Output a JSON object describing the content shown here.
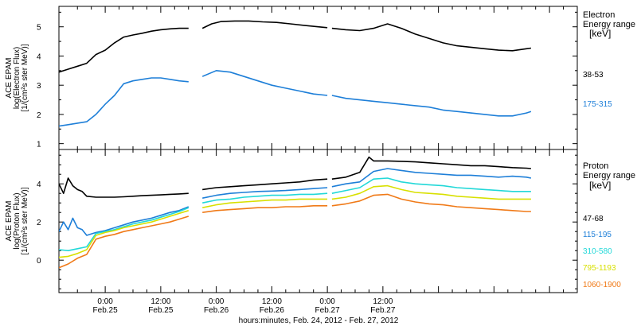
{
  "chart_data": [
    {
      "type": "line",
      "panel": "electron",
      "ylabel_lines": [
        "ACE EPAM",
        "log(Electron Flux)",
        "[1/(cm²s ster MeV)]"
      ],
      "legend_title": [
        "Electron",
        "Energy range",
        "[keV]"
      ],
      "ylim": [
        0.8,
        5.7
      ],
      "yticks": [
        1,
        2,
        3,
        4,
        5
      ],
      "xlim_hours": [
        -10,
        102
      ],
      "series": [
        {
          "name": "38-53",
          "color": "#000000",
          "segments": [
            {
              "x": [
                -10,
                -8,
                -6,
                -4,
                -2,
                0,
                2,
                4,
                6,
                8,
                10,
                12,
                14,
                16,
                18
              ],
              "y": [
                3.45,
                3.55,
                3.65,
                3.75,
                4.05,
                4.2,
                4.45,
                4.65,
                4.72,
                4.78,
                4.85,
                4.9,
                4.93,
                4.95,
                4.95
              ]
            },
            {
              "x": [
                21,
                23,
                25,
                28,
                31,
                34,
                37,
                40,
                43,
                46,
                48
              ],
              "y": [
                4.95,
                5.1,
                5.18,
                5.2,
                5.2,
                5.17,
                5.15,
                5.1,
                5.05,
                5.0,
                4.97
              ]
            },
            {
              "x": [
                49,
                52,
                55,
                58,
                61,
                64,
                67,
                70,
                73,
                76,
                79,
                82,
                85,
                88,
                91,
                92
              ],
              "y": [
                4.95,
                4.9,
                4.87,
                4.95,
                5.1,
                4.95,
                4.75,
                4.6,
                4.45,
                4.35,
                4.3,
                4.25,
                4.2,
                4.18,
                4.25,
                4.27
              ]
            }
          ]
        },
        {
          "name": "175-315",
          "color": "#1e7fd8",
          "segments": [
            {
              "x": [
                -10,
                -8,
                -6,
                -4,
                -2,
                0,
                2,
                4,
                6,
                8,
                10,
                12,
                14,
                16,
                18
              ],
              "y": [
                1.6,
                1.65,
                1.7,
                1.75,
                2.0,
                2.35,
                2.65,
                3.05,
                3.15,
                3.2,
                3.25,
                3.25,
                3.2,
                3.15,
                3.12
              ]
            },
            {
              "x": [
                21,
                24,
                27,
                30,
                33,
                36,
                39,
                42,
                45,
                48
              ],
              "y": [
                3.3,
                3.5,
                3.45,
                3.3,
                3.15,
                3.0,
                2.9,
                2.8,
                2.7,
                2.65
              ]
            },
            {
              "x": [
                49,
                52,
                55,
                58,
                61,
                64,
                67,
                70,
                73,
                76,
                79,
                82,
                85,
                88,
                91,
                92
              ],
              "y": [
                2.65,
                2.55,
                2.5,
                2.45,
                2.4,
                2.35,
                2.3,
                2.25,
                2.15,
                2.1,
                2.05,
                2.0,
                1.95,
                1.95,
                2.05,
                2.1
              ]
            }
          ]
        }
      ]
    },
    {
      "type": "line",
      "panel": "proton",
      "ylabel_lines": [
        "ACE EPAM",
        "log(Proton Flux)",
        "[1/(cm²s ster MeV)]"
      ],
      "legend_title": [
        "Proton",
        "Energy range",
        "[keV]"
      ],
      "ylim": [
        -1.7,
        5.8
      ],
      "yticks": [
        0,
        2,
        4
      ],
      "xlim_hours": [
        -10,
        102
      ],
      "xticks": [
        {
          "hours": 0,
          "time": "0:00",
          "date": "Feb.25"
        },
        {
          "hours": 12,
          "time": "12:00",
          "date": "Feb.25"
        },
        {
          "hours": 24,
          "time": "0:00",
          "date": "Feb.26"
        },
        {
          "hours": 36,
          "time": "12:00",
          "date": "Feb.26"
        },
        {
          "hours": 48,
          "time": "0:00",
          "date": "Feb.27"
        },
        {
          "hours": 60,
          "time": "12:00",
          "date": "Feb.27"
        }
      ],
      "xlabel": "hours:minutes, Feb. 24, 2012 - Feb. 27, 2012",
      "series": [
        {
          "name": "47-68",
          "color": "#000000",
          "segments": [
            {
              "x": [
                -10,
                -9,
                -8,
                -7,
                -6,
                -5,
                -4,
                -2,
                0,
                2,
                4,
                6,
                8,
                10,
                12,
                14,
                16,
                18
              ],
              "y": [
                4.0,
                3.5,
                4.3,
                3.9,
                3.7,
                3.6,
                3.35,
                3.3,
                3.3,
                3.3,
                3.32,
                3.35,
                3.38,
                3.4,
                3.42,
                3.45,
                3.47,
                3.5
              ]
            },
            {
              "x": [
                21,
                24,
                27,
                30,
                33,
                36,
                39,
                42,
                45,
                48
              ],
              "y": [
                3.7,
                3.8,
                3.85,
                3.9,
                3.95,
                4.0,
                4.05,
                4.1,
                4.2,
                4.25
              ]
            },
            {
              "x": [
                49,
                52,
                55,
                57,
                58,
                61,
                64,
                67,
                70,
                73,
                76,
                79,
                82,
                85,
                88,
                91,
                92
              ],
              "y": [
                4.25,
                4.35,
                4.6,
                5.4,
                5.2,
                5.2,
                5.18,
                5.15,
                5.1,
                5.05,
                5.0,
                4.95,
                4.95,
                4.9,
                4.85,
                4.82,
                4.8
              ]
            }
          ]
        },
        {
          "name": "115-195",
          "color": "#1e7fd8",
          "segments": [
            {
              "x": [
                -10,
                -9,
                -8,
                -7,
                -6,
                -5,
                -4,
                -2,
                0,
                2,
                4,
                6,
                8,
                10,
                12,
                14,
                16,
                18
              ],
              "y": [
                1.5,
                2.0,
                1.6,
                2.2,
                1.7,
                1.6,
                1.3,
                1.45,
                1.55,
                1.7,
                1.85,
                2.0,
                2.1,
                2.2,
                2.35,
                2.5,
                2.6,
                2.8
              ]
            },
            {
              "x": [
                21,
                24,
                27,
                30,
                33,
                36,
                39,
                42,
                45,
                48
              ],
              "y": [
                3.25,
                3.4,
                3.5,
                3.55,
                3.6,
                3.62,
                3.65,
                3.7,
                3.75,
                3.8
              ]
            },
            {
              "x": [
                49,
                52,
                55,
                58,
                61,
                64,
                67,
                70,
                73,
                76,
                79,
                82,
                85,
                88,
                91,
                92
              ],
              "y": [
                3.85,
                4.0,
                4.1,
                4.65,
                4.8,
                4.7,
                4.6,
                4.55,
                4.5,
                4.45,
                4.45,
                4.4,
                4.35,
                4.4,
                4.35,
                4.3
              ]
            }
          ]
        },
        {
          "name": "310-580",
          "color": "#22d8d8",
          "segments": [
            {
              "x": [
                -10,
                -8,
                -6,
                -4,
                -2,
                0,
                2,
                4,
                6,
                8,
                10,
                12,
                14,
                16,
                18
              ],
              "y": [
                0.55,
                0.5,
                0.6,
                0.7,
                1.4,
                1.5,
                1.6,
                1.75,
                1.9,
                2.0,
                2.1,
                2.25,
                2.4,
                2.55,
                2.75
              ]
            },
            {
              "x": [
                21,
                24,
                27,
                30,
                33,
                36,
                39,
                42,
                45,
                48
              ],
              "y": [
                3.0,
                3.15,
                3.2,
                3.3,
                3.35,
                3.4,
                3.4,
                3.45,
                3.45,
                3.5
              ]
            },
            {
              "x": [
                49,
                52,
                55,
                58,
                61,
                64,
                67,
                70,
                73,
                76,
                79,
                82,
                85,
                88,
                91,
                92
              ],
              "y": [
                3.5,
                3.65,
                3.8,
                4.25,
                4.3,
                4.1,
                4.0,
                3.95,
                3.9,
                3.8,
                3.75,
                3.7,
                3.65,
                3.6,
                3.6,
                3.6
              ]
            }
          ]
        },
        {
          "name": "795-1193",
          "color": "#d8e000",
          "segments": [
            {
              "x": [
                -10,
                -8,
                -6,
                -4,
                -2,
                0,
                2,
                4,
                6,
                8,
                10,
                12,
                14,
                16,
                18
              ],
              "y": [
                0.15,
                0.2,
                0.35,
                0.55,
                1.3,
                1.45,
                1.55,
                1.7,
                1.8,
                1.9,
                2.0,
                2.15,
                2.3,
                2.45,
                2.6
              ]
            },
            {
              "x": [
                21,
                24,
                27,
                30,
                33,
                36,
                39,
                42,
                45,
                48
              ],
              "y": [
                2.75,
                2.9,
                3.0,
                3.05,
                3.1,
                3.15,
                3.15,
                3.2,
                3.2,
                3.2
              ]
            },
            {
              "x": [
                49,
                52,
                55,
                58,
                61,
                64,
                67,
                70,
                73,
                76,
                79,
                82,
                85,
                88,
                91,
                92
              ],
              "y": [
                3.2,
                3.3,
                3.5,
                3.85,
                3.9,
                3.7,
                3.55,
                3.5,
                3.45,
                3.35,
                3.3,
                3.25,
                3.2,
                3.2,
                3.2,
                3.2
              ]
            }
          ]
        },
        {
          "name": "1060-1900",
          "color": "#f07a18",
          "segments": [
            {
              "x": [
                -10,
                -8,
                -6,
                -4,
                -2,
                0,
                2,
                4,
                6,
                8,
                10,
                12,
                14,
                16,
                18
              ],
              "y": [
                -0.4,
                -0.2,
                0.1,
                0.3,
                1.1,
                1.25,
                1.35,
                1.5,
                1.6,
                1.7,
                1.8,
                1.9,
                2.0,
                2.15,
                2.3
              ]
            },
            {
              "x": [
                21,
                24,
                27,
                30,
                33,
                36,
                39,
                42,
                45,
                48
              ],
              "y": [
                2.5,
                2.6,
                2.65,
                2.7,
                2.75,
                2.75,
                2.8,
                2.8,
                2.85,
                2.85
              ]
            },
            {
              "x": [
                49,
                52,
                55,
                58,
                61,
                64,
                67,
                70,
                73,
                76,
                79,
                82,
                85,
                88,
                91,
                92
              ],
              "y": [
                2.85,
                2.95,
                3.1,
                3.4,
                3.45,
                3.2,
                3.05,
                2.95,
                2.9,
                2.8,
                2.75,
                2.7,
                2.65,
                2.6,
                2.55,
                2.55
              ]
            }
          ]
        }
      ]
    }
  ]
}
